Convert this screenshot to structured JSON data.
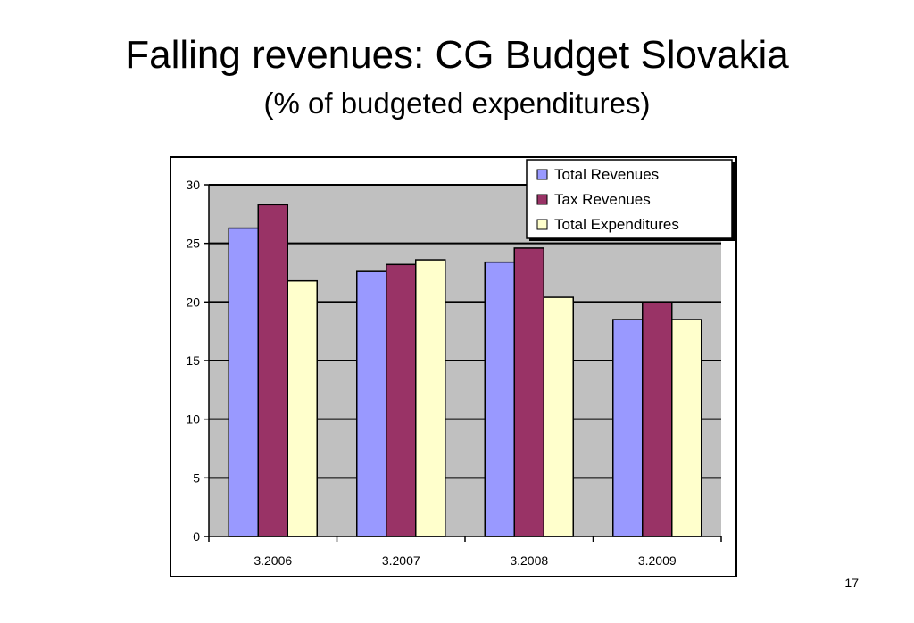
{
  "slide": {
    "title": "Falling revenues: CG Budget Slovakia",
    "subtitle": "(% of budgeted expenditures)",
    "page_number": "17"
  },
  "colors": {
    "plot_background": "#c0c0c0",
    "gridline": "#000000",
    "total_revenues": "#9999ff",
    "tax_revenues": "#993366",
    "total_expenditures": "#ffffcc"
  },
  "chart_data": {
    "type": "bar",
    "categories": [
      "3.2006",
      "3.2007",
      "3.2008",
      "3.2009"
    ],
    "series": [
      {
        "name": "Total Revenues",
        "values": [
          26.3,
          22.6,
          23.4,
          18.5
        ],
        "color_key": "total_revenues"
      },
      {
        "name": "Tax Revenues",
        "values": [
          28.3,
          23.2,
          24.6,
          20.0
        ],
        "color_key": "tax_revenues"
      },
      {
        "name": "Total Expenditures",
        "values": [
          21.8,
          23.6,
          20.4,
          18.5
        ],
        "color_key": "total_expenditures"
      }
    ],
    "ylim": [
      0,
      30
    ],
    "yticks": [
      0,
      5,
      10,
      15,
      20,
      25,
      30
    ],
    "ytick_labels": [
      "0",
      "5",
      "10",
      "15",
      "20",
      "25",
      "30"
    ],
    "xlabel": "",
    "ylabel": "",
    "grid": true,
    "legend_position": "top-right"
  }
}
